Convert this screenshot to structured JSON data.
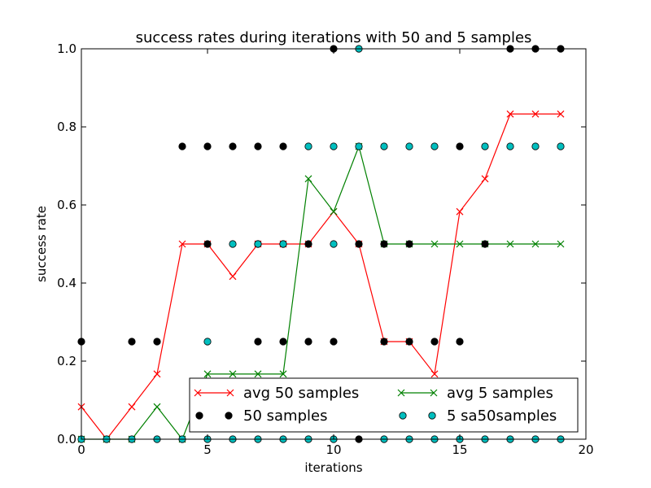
{
  "chart_data": {
    "type": "line",
    "title": "success rates during iterations with 50 and 5 samples",
    "xlabel": "iterations",
    "ylabel": "success rate",
    "xlim": [
      0,
      20
    ],
    "ylim": [
      0.0,
      1.0
    ],
    "xticks": [
      "0",
      "5",
      "10",
      "15",
      "20"
    ],
    "yticks": [
      "0.0",
      "0.2",
      "0.4",
      "0.6",
      "0.8",
      "1.0"
    ],
    "grid": false,
    "legend_position": "bottom-right",
    "legend_columns": 2,
    "series": [
      {
        "name": "avg 50 samples",
        "style": "line-x",
        "color": "#ff0000",
        "x": [
          0,
          1,
          2,
          3,
          4,
          5,
          6,
          7,
          8,
          9,
          10,
          11,
          12,
          13,
          14,
          15,
          16,
          17,
          18,
          19
        ],
        "y": [
          0.083,
          0.0,
          0.083,
          0.167,
          0.5,
          0.5,
          0.417,
          0.5,
          0.5,
          0.5,
          0.583,
          0.5,
          0.25,
          0.25,
          0.167,
          0.583,
          0.667,
          0.833,
          0.833,
          0.833
        ]
      },
      {
        "name": "avg 5 samples",
        "style": "line-x",
        "color": "#008000",
        "x": [
          0,
          1,
          2,
          3,
          4,
          5,
          6,
          7,
          8,
          9,
          10,
          11,
          12,
          13,
          14,
          15,
          16,
          17,
          18,
          19
        ],
        "y": [
          0.0,
          0.0,
          0.0,
          0.083,
          0.0,
          0.167,
          0.167,
          0.167,
          0.167,
          0.667,
          0.583,
          0.75,
          0.5,
          0.5,
          0.5,
          0.5,
          0.5,
          0.5,
          0.5,
          0.5
        ]
      },
      {
        "name": "50 samples",
        "style": "dots",
        "color": "#000000",
        "points": [
          [
            0,
            0.25
          ],
          [
            2,
            0.25
          ],
          [
            3,
            0.25
          ],
          [
            4,
            0.75
          ],
          [
            5,
            0.75
          ],
          [
            6,
            0.75
          ],
          [
            7,
            0.75
          ],
          [
            8,
            0.75
          ],
          [
            5,
            0.5
          ],
          [
            7,
            0.5
          ],
          [
            8,
            0.5
          ],
          [
            9,
            0.5
          ],
          [
            11,
            0.5
          ],
          [
            12,
            0.5
          ],
          [
            13,
            0.5
          ],
          [
            15,
            0.75
          ],
          [
            16,
            0.5
          ],
          [
            7,
            0.25
          ],
          [
            8,
            0.25
          ],
          [
            9,
            0.25
          ],
          [
            10,
            0.25
          ],
          [
            12,
            0.25
          ],
          [
            13,
            0.25
          ],
          [
            14,
            0.25
          ],
          [
            15,
            0.25
          ],
          [
            10,
            1.0
          ],
          [
            17,
            1.0
          ],
          [
            18,
            1.0
          ],
          [
            19,
            1.0
          ],
          [
            11,
            0.0
          ]
        ]
      },
      {
        "name": "5 sa50samples",
        "style": "dots",
        "color": "#00bfbf",
        "points": [
          [
            0,
            0.0
          ],
          [
            1,
            0.0
          ],
          [
            2,
            0.0
          ],
          [
            3,
            0.0
          ],
          [
            4,
            0.0
          ],
          [
            5,
            0.0
          ],
          [
            6,
            0.0
          ],
          [
            7,
            0.0
          ],
          [
            8,
            0.0
          ],
          [
            9,
            0.0
          ],
          [
            10,
            0.0
          ],
          [
            12,
            0.0
          ],
          [
            13,
            0.0
          ],
          [
            14,
            0.0
          ],
          [
            15,
            0.0
          ],
          [
            16,
            0.0
          ],
          [
            17,
            0.0
          ],
          [
            18,
            0.0
          ],
          [
            19,
            0.0
          ],
          [
            5,
            0.25
          ],
          [
            6,
            0.5
          ],
          [
            7,
            0.5
          ],
          [
            8,
            0.5
          ],
          [
            10,
            0.5
          ],
          [
            9,
            0.75
          ],
          [
            10,
            0.75
          ],
          [
            11,
            0.75
          ],
          [
            12,
            0.75
          ],
          [
            13,
            0.75
          ],
          [
            14,
            0.75
          ],
          [
            16,
            0.75
          ],
          [
            17,
            0.75
          ],
          [
            18,
            0.75
          ],
          [
            19,
            0.75
          ],
          [
            11,
            1.0
          ]
        ]
      }
    ]
  }
}
